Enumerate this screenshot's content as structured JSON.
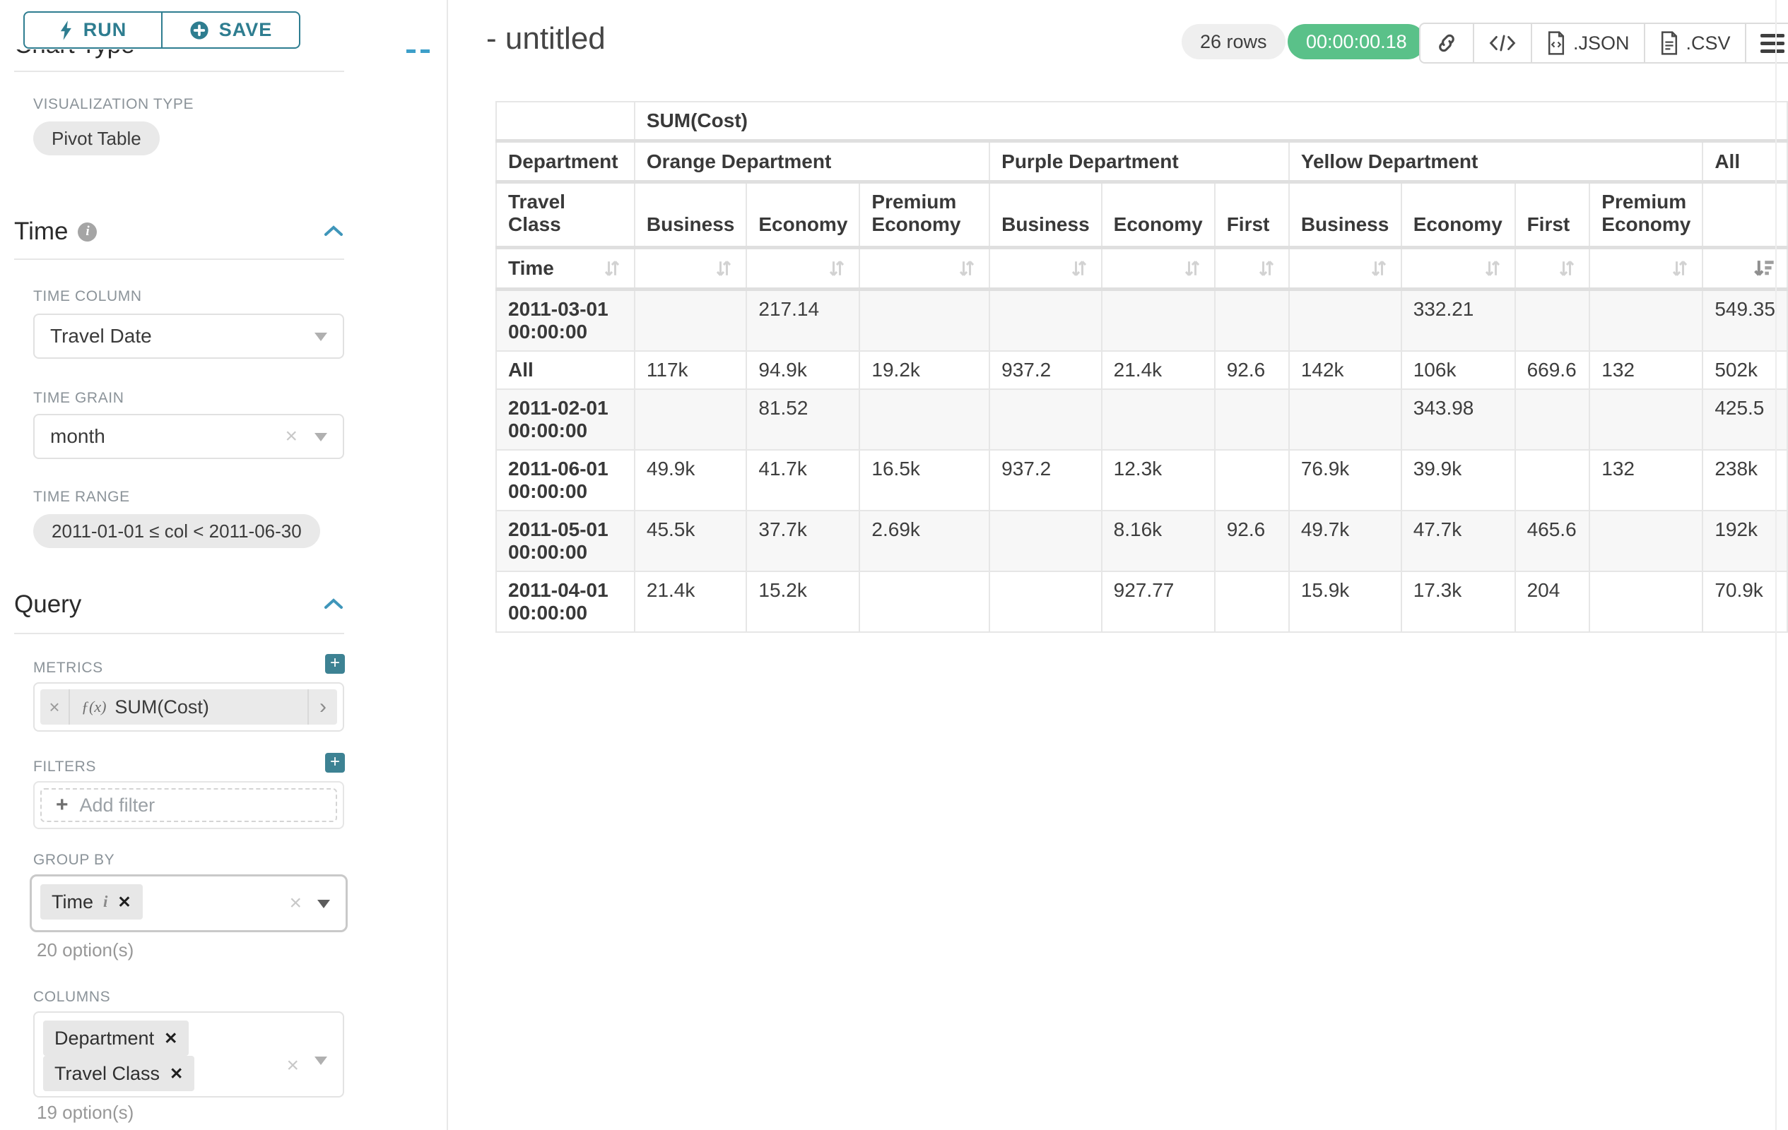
{
  "colors": {
    "accent_teal": "#2e7d90",
    "plus_button_teal": "#3d8293",
    "timer_green": "#5ac189"
  },
  "sidebar": {
    "run_button": "RUN",
    "save_button": "SAVE",
    "clipped_section_title": "Chart Type",
    "visualization_type": {
      "label": "VISUALIZATION TYPE",
      "value": "Pivot Table"
    },
    "time": {
      "title": "Time",
      "time_column": {
        "label": "TIME COLUMN",
        "value": "Travel Date"
      },
      "time_grain": {
        "label": "TIME GRAIN",
        "value": "month"
      },
      "time_range": {
        "label": "TIME RANGE",
        "value": "2011-01-01 ≤ col < 2011-06-30"
      }
    },
    "query": {
      "title": "Query",
      "metrics": {
        "label": "METRICS",
        "metric_prefix": "ƒ(x)",
        "metric": "SUM(Cost)"
      },
      "filters": {
        "label": "FILTERS",
        "add_filter": "Add filter"
      },
      "group_by": {
        "label": "GROUP BY",
        "chips": [
          {
            "label": "Time",
            "has_info": true
          }
        ],
        "hint": "20 option(s)"
      },
      "columns": {
        "label": "COLUMNS",
        "chips": [
          {
            "label": "Department"
          },
          {
            "label": "Travel Class"
          }
        ],
        "hint": "19 option(s)"
      }
    }
  },
  "header": {
    "title": "- untitled",
    "rows_badge": "26 rows",
    "timer": "00:00:00.18",
    "export_json": ".JSON",
    "export_csv": ".CSV"
  },
  "table": {
    "metric_header": "SUM(Cost)",
    "row_header_department": "Department",
    "row_header_travel_class": "Travel Class",
    "row_header_time": "Time",
    "department_groups": [
      {
        "label": "Orange Department",
        "span": 3
      },
      {
        "label": "Purple Department",
        "span": 3
      },
      {
        "label": "Yellow Department",
        "span": 4
      },
      {
        "label": "All",
        "span": 1
      }
    ],
    "travel_classes": [
      "Business",
      "Economy",
      "Premium Economy",
      "Business",
      "Economy",
      "First",
      "Business",
      "Economy",
      "First",
      "Premium Economy",
      ""
    ],
    "rows": [
      {
        "time": "2011-03-01 00:00:00",
        "values": [
          "",
          "217.14",
          "",
          "",
          "",
          "",
          "",
          "332.21",
          "",
          "",
          "549.35"
        ]
      },
      {
        "time": "All",
        "values": [
          "117k",
          "94.9k",
          "19.2k",
          "937.2",
          "21.4k",
          "92.6",
          "142k",
          "106k",
          "669.6",
          "132",
          "502k"
        ]
      },
      {
        "time": "2011-02-01 00:00:00",
        "values": [
          "",
          "81.52",
          "",
          "",
          "",
          "",
          "",
          "343.98",
          "",
          "",
          "425.5"
        ]
      },
      {
        "time": "2011-06-01 00:00:00",
        "values": [
          "49.9k",
          "41.7k",
          "16.5k",
          "937.2",
          "12.3k",
          "",
          "76.9k",
          "39.9k",
          "",
          "132",
          "238k"
        ]
      },
      {
        "time": "2011-05-01 00:00:00",
        "values": [
          "45.5k",
          "37.7k",
          "2.69k",
          "",
          "8.16k",
          "92.6",
          "49.7k",
          "47.7k",
          "465.6",
          "",
          "192k"
        ]
      },
      {
        "time": "2011-04-01 00:00:00",
        "values": [
          "21.4k",
          "15.2k",
          "",
          "",
          "927.77",
          "",
          "15.9k",
          "17.3k",
          "204",
          "",
          "70.9k"
        ]
      }
    ]
  }
}
